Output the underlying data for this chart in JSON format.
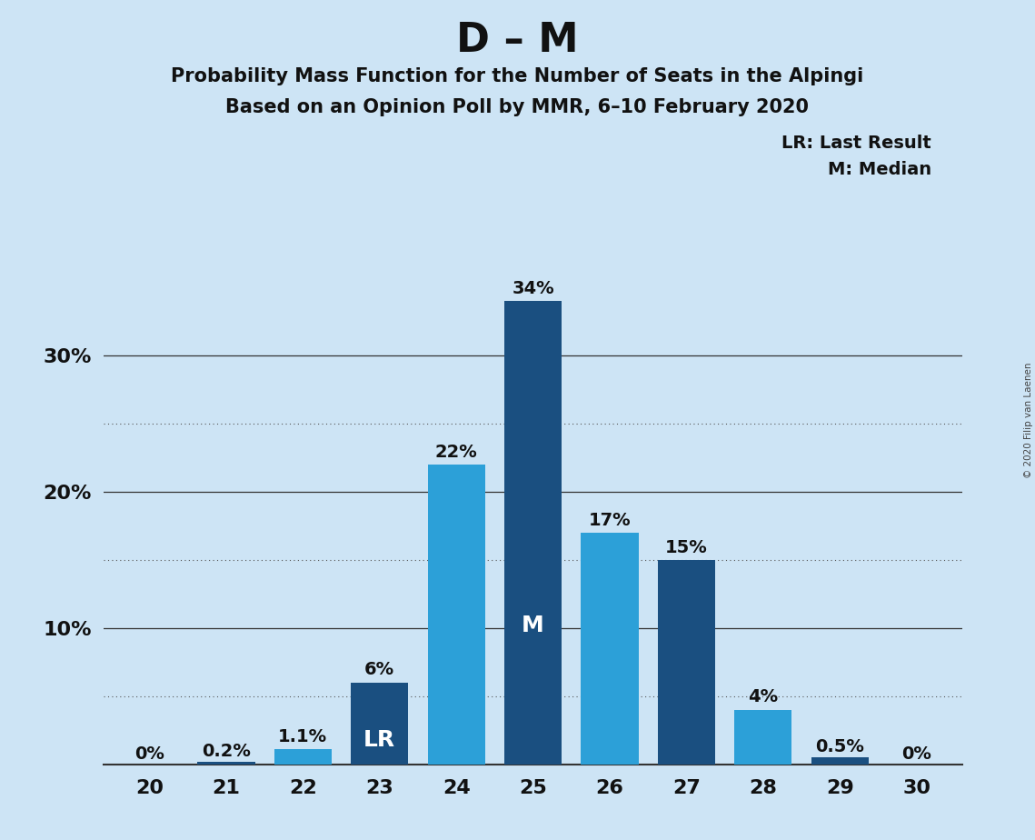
{
  "title": "D – M",
  "subtitle1": "Probability Mass Function for the Number of Seats in the Alpingi",
  "subtitle2": "Based on an Opinion Poll by MMR, 6–10 February 2020",
  "copyright": "© 2020 Filip van Laenen",
  "legend_line1": "LR: Last Result",
  "legend_line2": "M: Median",
  "categories": [
    20,
    21,
    22,
    23,
    24,
    25,
    26,
    27,
    28,
    29,
    30
  ],
  "values": [
    0.0,
    0.2,
    1.1,
    6.0,
    22.0,
    34.0,
    17.0,
    15.0,
    4.0,
    0.5,
    0.0
  ],
  "bar_inner_labels": [
    "",
    "",
    "",
    "LR",
    "",
    "M",
    "",
    "",
    "",
    "",
    ""
  ],
  "pct_labels": [
    "0%",
    "0.2%",
    "1.1%",
    "6%",
    "22%",
    "34%",
    "17%",
    "15%",
    "4%",
    "0.5%",
    "0%"
  ],
  "colors": {
    "background": "#cde4f5",
    "bar_dark": "#1a4f80",
    "bar_light": "#2ca0d8"
  },
  "bar_colors": [
    "#1a4f80",
    "#1a4f80",
    "#2ca0d8",
    "#1a4f80",
    "#2ca0d8",
    "#1a4f80",
    "#2ca0d8",
    "#1a4f80",
    "#2ca0d8",
    "#1a4f80",
    "#1a4f80"
  ],
  "ylim": [
    0,
    37
  ],
  "yticks": [
    10,
    20,
    30
  ],
  "ytick_labels": [
    "10%",
    "20%",
    "30%"
  ],
  "grid_solid": [
    10,
    20,
    30
  ],
  "grid_dotted": [
    5,
    15,
    25
  ],
  "figsize": [
    11.39,
    9.24
  ],
  "dpi": 100
}
